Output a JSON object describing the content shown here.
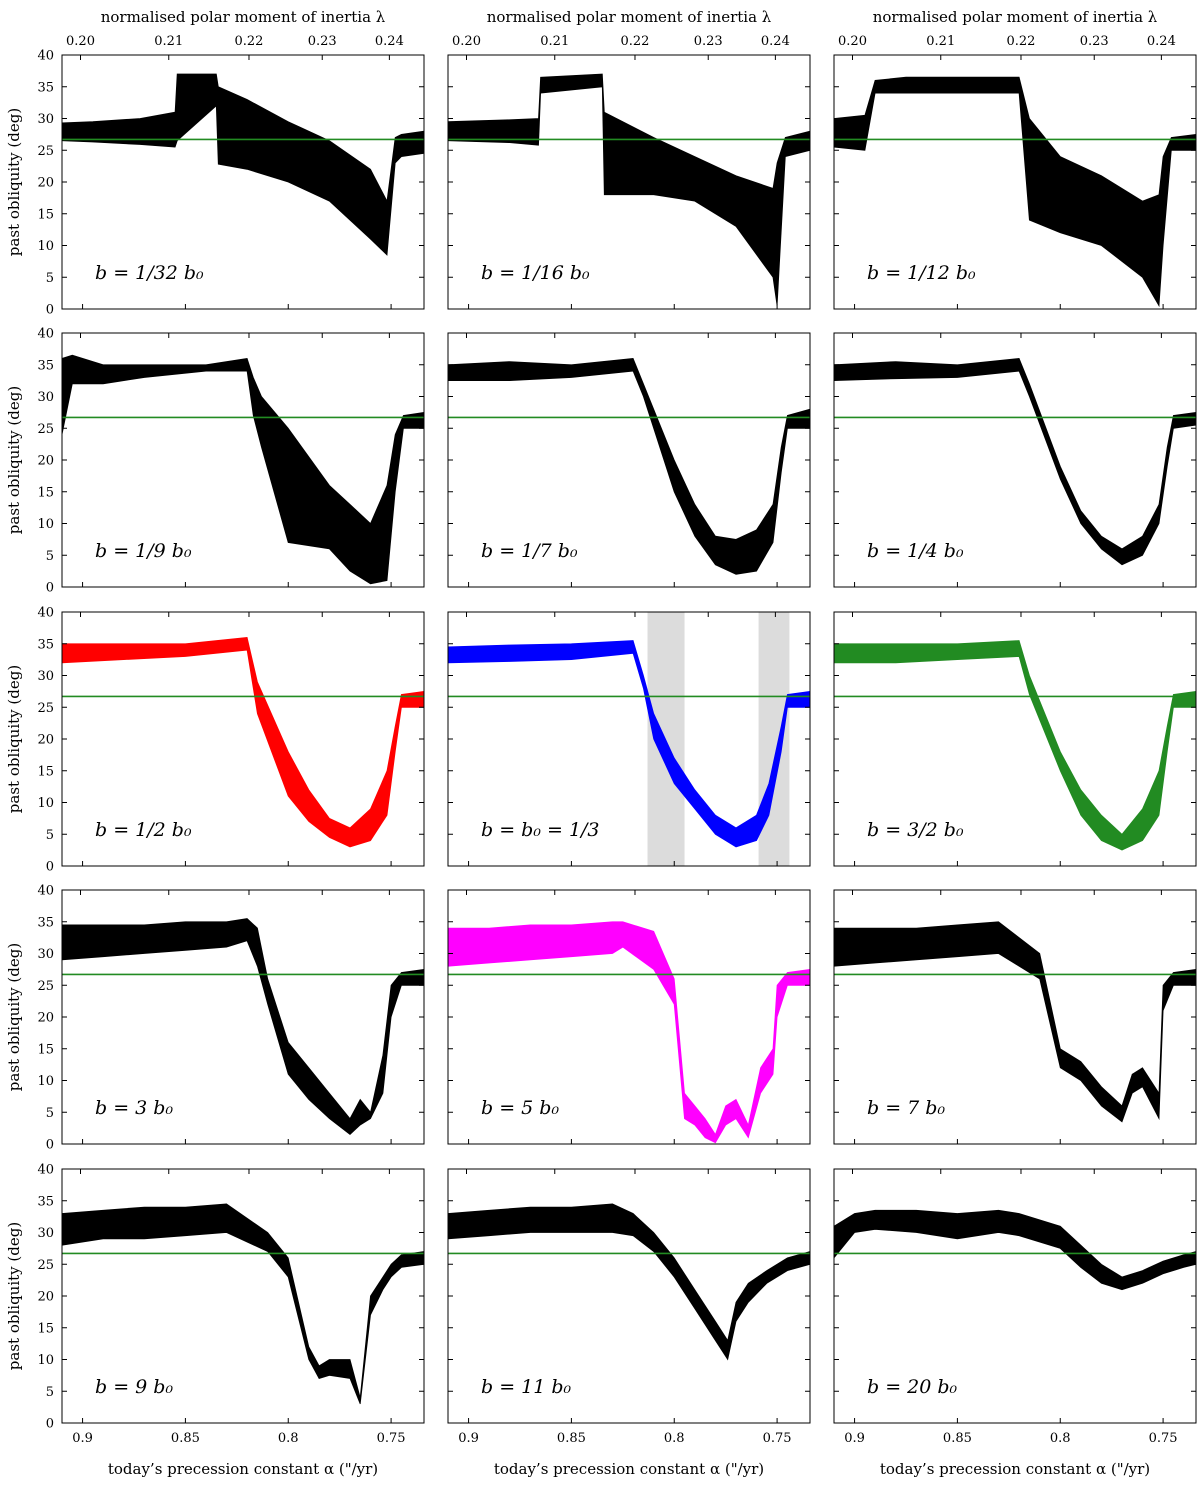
{
  "chart_data": {
    "type": "area",
    "layout": {
      "rows": 5,
      "cols": 3
    },
    "top_axis": {
      "label": "normalised polar moment of inertia λ",
      "ticks": [
        0.2,
        0.21,
        0.22,
        0.23,
        0.24
      ],
      "tick_labels": [
        "0.20",
        "0.21",
        "0.22",
        "0.23",
        "0.24"
      ]
    },
    "x_axis": {
      "label": "today’s precession constant α (\"/yr)",
      "range": [
        0.91,
        0.734
      ],
      "reversed": true,
      "ticks": [
        0.9,
        0.85,
        0.8,
        0.75
      ],
      "tick_labels": [
        "0.9",
        "0.85",
        "0.8",
        "0.75"
      ]
    },
    "y_axis": {
      "label": "past obliquity (deg)",
      "range": [
        0,
        40
      ],
      "ticks": [
        0,
        5,
        10,
        15,
        20,
        25,
        30,
        35,
        40
      ],
      "tick_labels": [
        "0",
        "5",
        "10",
        "15",
        "20",
        "25",
        "30",
        "35",
        "40"
      ]
    },
    "reference_line": {
      "y": 26.7,
      "color": "#228b22"
    },
    "shaded_regions_panel": 7,
    "shaded_regions": [
      [
        0.813,
        0.795
      ],
      [
        0.759,
        0.744
      ]
    ],
    "colors": {
      "black": "#000000",
      "red": "#ff0000",
      "blue": "#0000ff",
      "green": "#228b22",
      "magenta": "#ff00ff",
      "shade": "#dcdcdc"
    },
    "panels": [
      {
        "label": "b = 1/32 b₀",
        "color": "#000000",
        "x": [
          0.91,
          0.895,
          0.872,
          0.855,
          0.854,
          0.835,
          0.834,
          0.82,
          0.8,
          0.78,
          0.76,
          0.752,
          0.748,
          0.745,
          0.734
        ],
        "upper": [
          29.3,
          29.5,
          30,
          31,
          37,
          37,
          35,
          33,
          29.5,
          26.5,
          22,
          17,
          27,
          27.5,
          28
        ],
        "lower": [
          26.5,
          26.3,
          25.9,
          25.5,
          26.5,
          32,
          22.8,
          22,
          20,
          17,
          11,
          8.5,
          23,
          24,
          24.5
        ]
      },
      {
        "label": "b = 1/16 b₀",
        "color": "#000000",
        "x": [
          0.91,
          0.88,
          0.866,
          0.865,
          0.835,
          0.834,
          0.81,
          0.79,
          0.77,
          0.752,
          0.75,
          0.746,
          0.734
        ],
        "upper": [
          29.5,
          29.8,
          30,
          36.5,
          37,
          31,
          27,
          24,
          21,
          19,
          23,
          27,
          28
        ],
        "lower": [
          26.5,
          26.2,
          25.8,
          34,
          35,
          18,
          18,
          17,
          13,
          5,
          0.5,
          24,
          25
        ]
      },
      {
        "label": "b = 1/12 b₀",
        "color": "#000000",
        "x": [
          0.91,
          0.895,
          0.89,
          0.875,
          0.82,
          0.815,
          0.8,
          0.78,
          0.76,
          0.752,
          0.75,
          0.746,
          0.734
        ],
        "upper": [
          30,
          30.5,
          36,
          36.5,
          36.5,
          30,
          24,
          21,
          17,
          18,
          24,
          27,
          27.5
        ],
        "lower": [
          25.5,
          25,
          34,
          34,
          34,
          14,
          12,
          10,
          5,
          0.5,
          10,
          25,
          25
        ]
      },
      {
        "label": "b = 1/9 b₀",
        "color": "#000000",
        "x": [
          0.91,
          0.905,
          0.89,
          0.87,
          0.84,
          0.82,
          0.817,
          0.813,
          0.8,
          0.78,
          0.77,
          0.76,
          0.752,
          0.748,
          0.744,
          0.734
        ],
        "upper": [
          36,
          36.5,
          35,
          35,
          35,
          36,
          33,
          30,
          25,
          16,
          13,
          10,
          16,
          24,
          27,
          27.5
        ],
        "lower": [
          24,
          32,
          32,
          33,
          34,
          34,
          27,
          22,
          7,
          6,
          2.5,
          0.5,
          1,
          15,
          25,
          25
        ]
      },
      {
        "label": "b = 1/7 b₀",
        "color": "#000000",
        "x": [
          0.91,
          0.88,
          0.85,
          0.82,
          0.815,
          0.8,
          0.79,
          0.78,
          0.77,
          0.76,
          0.752,
          0.748,
          0.745,
          0.734
        ],
        "upper": [
          35,
          35.5,
          35,
          36,
          32,
          20,
          13,
          8,
          7.5,
          9,
          13,
          22,
          27,
          28
        ],
        "lower": [
          32.5,
          32.5,
          33,
          34,
          30,
          15,
          8,
          3.5,
          2,
          2.5,
          7,
          18,
          25,
          25
        ]
      },
      {
        "label": "b = 1/4 b₀",
        "color": "#000000",
        "x": [
          0.91,
          0.88,
          0.85,
          0.82,
          0.815,
          0.8,
          0.79,
          0.78,
          0.77,
          0.76,
          0.752,
          0.748,
          0.745,
          0.734
        ],
        "upper": [
          35,
          35.5,
          35,
          36,
          32,
          19,
          12,
          8,
          6,
          8,
          13,
          22,
          27,
          27.5
        ],
        "lower": [
          32.5,
          32.8,
          33,
          34,
          30,
          17,
          10,
          6,
          3.5,
          5,
          10,
          19,
          25,
          25.5
        ]
      },
      {
        "label": "b = 1/2 b₀",
        "color": "#ff0000",
        "x": [
          0.91,
          0.88,
          0.85,
          0.82,
          0.815,
          0.8,
          0.79,
          0.78,
          0.77,
          0.76,
          0.752,
          0.748,
          0.745,
          0.734
        ],
        "upper": [
          35,
          35,
          35,
          36,
          29,
          18,
          12,
          7.5,
          6,
          9,
          15,
          22,
          27,
          27.5
        ],
        "lower": [
          32,
          32.5,
          33,
          34,
          24,
          11,
          7,
          4.5,
          3,
          4,
          8,
          18,
          25,
          25
        ]
      },
      {
        "label": "b = b₀ = 1/3",
        "color": "#0000ff",
        "x": [
          0.91,
          0.88,
          0.85,
          0.82,
          0.815,
          0.81,
          0.8,
          0.79,
          0.78,
          0.77,
          0.76,
          0.754,
          0.748,
          0.745,
          0.734
        ],
        "upper": [
          34.5,
          34.8,
          35,
          35.5,
          30,
          24,
          17,
          12,
          8,
          6,
          8,
          13,
          22,
          27,
          27.5
        ],
        "lower": [
          32,
          32.2,
          32.5,
          33.5,
          28,
          20,
          13,
          9,
          5,
          3,
          4,
          8,
          18,
          25,
          25
        ]
      },
      {
        "label": "b = 3/2 b₀",
        "color": "#228b22",
        "x": [
          0.91,
          0.88,
          0.85,
          0.82,
          0.815,
          0.8,
          0.79,
          0.78,
          0.77,
          0.76,
          0.752,
          0.748,
          0.745,
          0.734
        ],
        "upper": [
          35,
          35,
          35,
          35.5,
          30,
          18,
          12,
          8,
          5,
          9,
          15,
          22,
          27,
          27.5
        ],
        "lower": [
          32,
          32,
          32.5,
          33,
          27,
          15,
          8,
          4,
          2.5,
          4,
          8,
          18,
          25,
          25
        ]
      },
      {
        "label": "b = 3 b₀",
        "color": "#000000",
        "x": [
          0.91,
          0.89,
          0.87,
          0.85,
          0.83,
          0.82,
          0.815,
          0.81,
          0.8,
          0.79,
          0.78,
          0.77,
          0.765,
          0.76,
          0.754,
          0.75,
          0.745,
          0.734
        ],
        "upper": [
          34.5,
          34.5,
          34.5,
          35,
          35,
          35.5,
          34,
          26,
          16,
          12,
          8,
          4,
          7,
          5,
          14,
          25,
          27,
          27.5
        ],
        "lower": [
          29,
          29.5,
          30,
          30.5,
          31,
          32,
          28,
          22,
          11,
          7,
          4,
          1.5,
          3,
          4,
          8,
          20,
          25,
          25
        ]
      },
      {
        "label": "b = 5 b₀",
        "color": "#ff00ff",
        "x": [
          0.91,
          0.89,
          0.87,
          0.85,
          0.83,
          0.825,
          0.81,
          0.8,
          0.795,
          0.79,
          0.785,
          0.78,
          0.775,
          0.77,
          0.764,
          0.758,
          0.752,
          0.75,
          0.745,
          0.734
        ],
        "upper": [
          34,
          34,
          34.5,
          34.5,
          35,
          35,
          33.5,
          26,
          8,
          6,
          4,
          1.5,
          6,
          7,
          3,
          12,
          15,
          25,
          27,
          27.5
        ],
        "lower": [
          28,
          28.5,
          29,
          29.5,
          30,
          31,
          27.5,
          22,
          4,
          3,
          1,
          0.2,
          3,
          4,
          1,
          8,
          11,
          20,
          25,
          25
        ]
      },
      {
        "label": "b = 7 b₀",
        "color": "#000000",
        "x": [
          0.91,
          0.89,
          0.87,
          0.85,
          0.83,
          0.81,
          0.8,
          0.79,
          0.78,
          0.77,
          0.765,
          0.76,
          0.752,
          0.75,
          0.745,
          0.734
        ],
        "upper": [
          34,
          34,
          34,
          34.5,
          35,
          30,
          15,
          13,
          9,
          6,
          11,
          12,
          8,
          25,
          27,
          27.5
        ],
        "lower": [
          28,
          28.5,
          29,
          29.5,
          30,
          26,
          12,
          10,
          6,
          3.5,
          8,
          9,
          4,
          21,
          25,
          25
        ]
      },
      {
        "label": "b = 9 b₀",
        "color": "#000000",
        "x": [
          0.91,
          0.89,
          0.87,
          0.85,
          0.83,
          0.81,
          0.8,
          0.79,
          0.785,
          0.78,
          0.77,
          0.765,
          0.76,
          0.754,
          0.75,
          0.745,
          0.734
        ],
        "upper": [
          33,
          33.5,
          34,
          34,
          34.5,
          30,
          26,
          12,
          9,
          10,
          10,
          4,
          20,
          23,
          25,
          26.5,
          27
        ],
        "lower": [
          28,
          29,
          29,
          29.5,
          30,
          27,
          23,
          10,
          7,
          7.5,
          7,
          3,
          17,
          21,
          23,
          24.5,
          25
        ]
      },
      {
        "label": "b = 11 b₀",
        "color": "#000000",
        "x": [
          0.91,
          0.89,
          0.87,
          0.85,
          0.83,
          0.82,
          0.81,
          0.8,
          0.79,
          0.78,
          0.774,
          0.77,
          0.764,
          0.755,
          0.745,
          0.734
        ],
        "upper": [
          33,
          33.5,
          34,
          34,
          34.5,
          33,
          30,
          26,
          21,
          16,
          13,
          19,
          22,
          24,
          26,
          27
        ],
        "lower": [
          29,
          29.5,
          30,
          30,
          30,
          29.5,
          27,
          23,
          18,
          13,
          10,
          16,
          19,
          22,
          24,
          25
        ]
      },
      {
        "label": "b = 20 b₀",
        "color": "#000000",
        "x": [
          0.91,
          0.9,
          0.89,
          0.87,
          0.85,
          0.83,
          0.82,
          0.8,
          0.79,
          0.78,
          0.77,
          0.76,
          0.75,
          0.74,
          0.734
        ],
        "upper": [
          31,
          33,
          33.5,
          33.5,
          33,
          33.5,
          33,
          31,
          28,
          25,
          23,
          24,
          25.5,
          26.5,
          27
        ],
        "lower": [
          26,
          30,
          30.5,
          30,
          29,
          30,
          29.5,
          27.5,
          24.5,
          22,
          21,
          22,
          23.5,
          24.5,
          25
        ]
      }
    ]
  }
}
